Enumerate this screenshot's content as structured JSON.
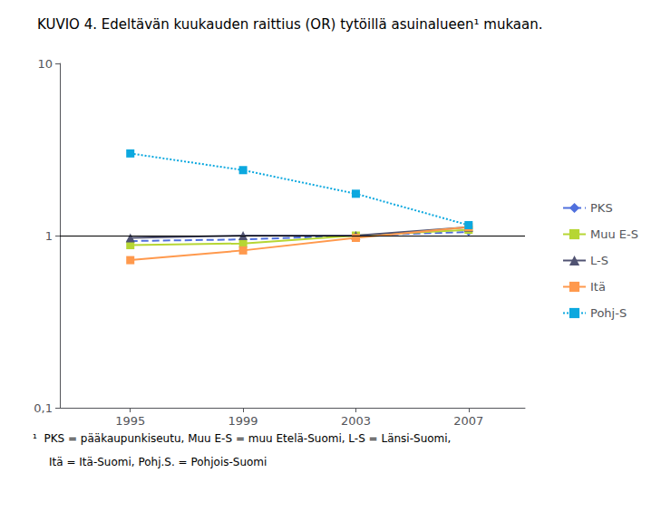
{
  "chart_data": {
    "type": "line",
    "title": "KUVIO 4. Edeltävän kuukauden raittius (OR) tytöillä asuinalueen¹ mukaan.",
    "annotations": [
      "¹  PKS = pääkaupunkiseutu, Muu E-S = muu Etelä-Suomi, L-S = Länsi-Suomi,",
      "Itä = Itä-Suomi, Pohj.S. = Pohjois-Suomi"
    ],
    "x": [
      1995,
      1999,
      2003,
      2007
    ],
    "series": [
      {
        "name": "PKS",
        "values": [
          0.93,
          0.95,
          1.0,
          1.05
        ],
        "marker": "diamond",
        "line_style": "dashed"
      },
      {
        "name": "Muu E-S",
        "values": [
          0.88,
          0.9,
          1.0,
          1.08
        ],
        "marker": "square",
        "line_style": "solid"
      },
      {
        "name": "L-S",
        "values": [
          0.97,
          1.0,
          1.0,
          1.12
        ],
        "marker": "triangle",
        "line_style": "solid"
      },
      {
        "name": "Itä",
        "values": [
          0.72,
          0.82,
          0.97,
          1.12
        ],
        "marker": "square",
        "line_style": "solid"
      },
      {
        "name": "Pohj-S",
        "values": [
          3.0,
          2.4,
          1.75,
          1.15
        ],
        "marker": "square",
        "line_style": "dotted"
      }
    ],
    "hline": {
      "value": 1.0,
      "color": "#000000"
    },
    "log": "y",
    "xlim": [
      1992.5,
      2009
    ],
    "xticks": [
      1995,
      1999,
      2003,
      2007
    ],
    "ylim": [
      0.1,
      10
    ],
    "yticks": [
      {
        "value": 0.1,
        "label": "0,1"
      },
      1,
      10
    ],
    "grid": false,
    "legend": "right"
  }
}
